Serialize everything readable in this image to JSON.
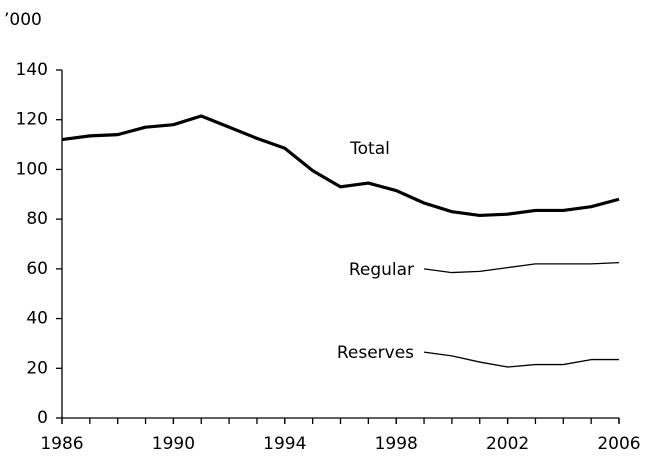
{
  "chart_data": {
    "type": "line",
    "y_label": "’000",
    "x": [
      1986,
      1987,
      1988,
      1989,
      1990,
      1991,
      1992,
      1993,
      1994,
      1995,
      1996,
      1997,
      1998,
      1999,
      2000,
      2001,
      2002,
      2003,
      2004,
      2005,
      2006
    ],
    "series": [
      {
        "name": "Total",
        "color": "#000000",
        "values": [
          112,
          113.5,
          114,
          117,
          118,
          121.5,
          117,
          112.5,
          108.5,
          99.5,
          93,
          94.5,
          91.5,
          86.5,
          83,
          81.5,
          82,
          83.5,
          83.5,
          85,
          88
        ]
      },
      {
        "name": "Regular",
        "color": "#000000",
        "values": [
          null,
          null,
          null,
          null,
          null,
          null,
          null,
          null,
          null,
          null,
          null,
          null,
          null,
          60,
          58.5,
          59,
          60.5,
          62,
          62,
          62,
          62.5
        ]
      },
      {
        "name": "Reserves",
        "color": "#000000",
        "values": [
          null,
          null,
          null,
          null,
          null,
          null,
          null,
          null,
          null,
          null,
          null,
          null,
          null,
          26.5,
          25,
          22.5,
          20.5,
          21.5,
          21.5,
          23.5,
          23.5
        ]
      }
    ],
    "xlim": [
      1986,
      2006
    ],
    "xticks": [
      1986,
      1990,
      1994,
      1998,
      2002,
      2006
    ],
    "ylim": [
      0,
      140
    ],
    "yticks": [
      0,
      20,
      40,
      60,
      80,
      100,
      120,
      140
    ],
    "grid": false
  }
}
